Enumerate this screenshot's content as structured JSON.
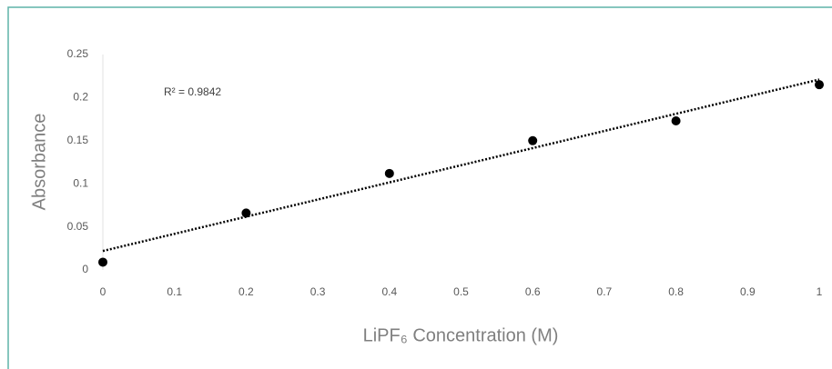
{
  "chart_data": {
    "type": "scatter",
    "x_label": "LiPF₆ Concentration (M)",
    "y_label": "Absorbance",
    "annotation": "R² = 0.9842",
    "x": [
      0,
      0.2,
      0.4,
      0.6,
      0.8,
      1
    ],
    "values": [
      0.009,
      0.066,
      0.112,
      0.15,
      0.173,
      0.215
    ],
    "color": "#000000",
    "trendline": {
      "x": [
        0,
        1
      ],
      "values": [
        0.022,
        0.221
      ],
      "color": "#000000"
    },
    "xlim": [
      0,
      1
    ],
    "ylim": [
      0,
      0.25
    ],
    "xticks": [
      0,
      0.1,
      0.2,
      0.3,
      0.4,
      0.5,
      0.6,
      0.7,
      0.8,
      0.9,
      1
    ],
    "yticks": [
      0,
      0.05,
      0.1,
      0.15,
      0.2,
      0.25
    ],
    "grid": false
  }
}
